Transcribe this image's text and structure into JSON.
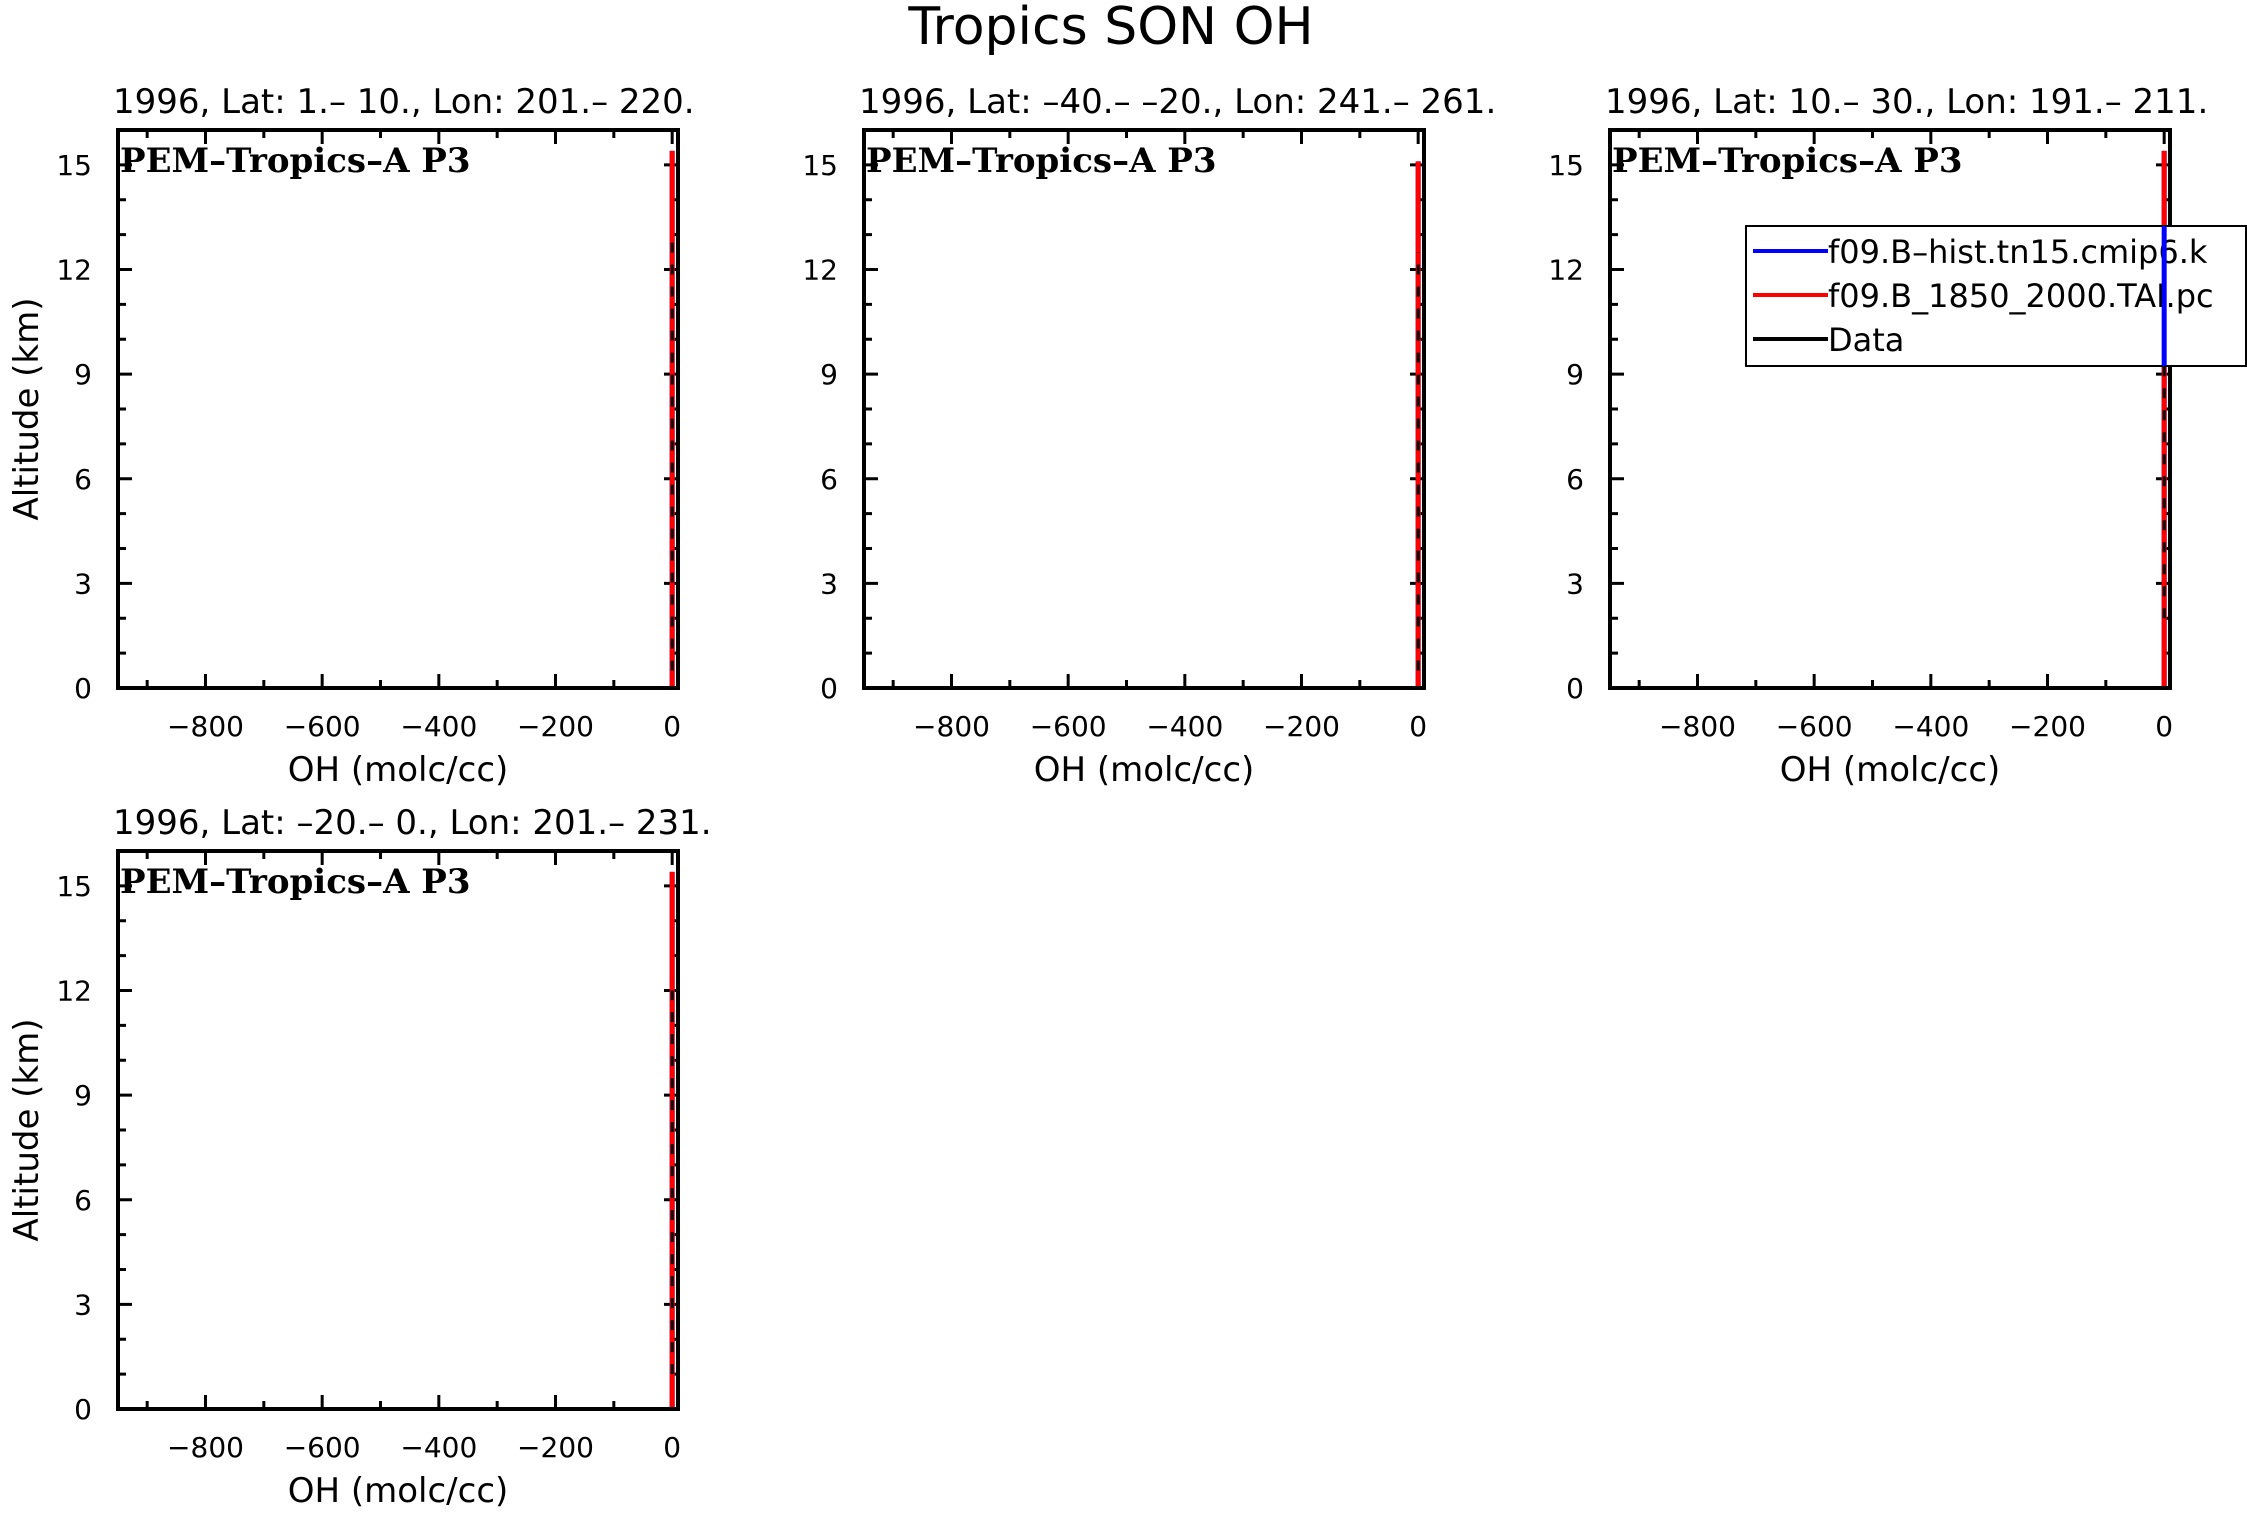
{
  "figure_title": "Tropics SON OH",
  "chart_data": [
    {
      "type": "line",
      "subtitle": "1996, Lat: 1.– 10., Lon: 201.– 220.",
      "campaign_label": "PEM–Tropics–A P3",
      "xlabel": "OH (molc/cc)",
      "ylabel": "Altitude (km)",
      "xlim": [
        -950,
        10
      ],
      "ylim": [
        0,
        16
      ],
      "xticks": [
        -800,
        -600,
        -400,
        -200,
        0
      ],
      "yticks": [
        0,
        3,
        6,
        9,
        12,
        15
      ],
      "show_legend": false,
      "series": [
        {
          "color": "#0000ff",
          "x": [
            0,
            0,
            0,
            0,
            0,
            0,
            0,
            0,
            0,
            0,
            0
          ],
          "y": [
            0,
            1.5,
            3,
            4.5,
            6,
            7.5,
            9,
            10.5,
            12,
            13.5,
            15.4
          ]
        },
        {
          "color": "#ff0000",
          "x": [
            0,
            0,
            0,
            0,
            0,
            0,
            0,
            0,
            0,
            0,
            0
          ],
          "y": [
            0,
            1.5,
            3,
            4.5,
            6,
            7.5,
            9,
            10.5,
            12,
            13.5,
            15.4
          ]
        },
        {
          "color": "#000000",
          "x": [
            0,
            0,
            0,
            0,
            0,
            0
          ],
          "y": [
            0.5,
            2.5,
            4.5,
            7,
            10,
            13
          ]
        }
      ]
    },
    {
      "type": "line",
      "subtitle": "1996, Lat: –40.– –20., Lon: 241.– 261.",
      "campaign_label": "PEM–Tropics–A P3",
      "xlabel": "OH (molc/cc)",
      "ylabel": "",
      "xlim": [
        -950,
        10
      ],
      "ylim": [
        0,
        16
      ],
      "xticks": [
        -800,
        -600,
        -400,
        -200,
        0
      ],
      "yticks": [
        0,
        3,
        6,
        9,
        12,
        15
      ],
      "show_legend": false,
      "series": [
        {
          "color": "#0000ff",
          "x": [
            0,
            0,
            0,
            0,
            0,
            0,
            0,
            0,
            0,
            0,
            0
          ],
          "y": [
            0,
            1.5,
            3,
            4.5,
            6,
            7.5,
            9,
            10.5,
            12,
            13.5,
            15.1
          ]
        },
        {
          "color": "#ff0000",
          "x": [
            0,
            0,
            0,
            0,
            0,
            0,
            0,
            0,
            0,
            0,
            0
          ],
          "y": [
            0,
            1.5,
            3,
            4.5,
            6,
            7.5,
            9,
            10.5,
            12,
            13.5,
            15.1
          ]
        },
        {
          "color": "#000000",
          "x": [
            0,
            0,
            0,
            0,
            0,
            0
          ],
          "y": [
            0.5,
            2,
            4,
            6.5,
            9.5,
            12.5
          ]
        }
      ]
    },
    {
      "type": "line",
      "subtitle": "1996, Lat: 10.– 30., Lon: 191.– 211.",
      "campaign_label": "PEM–Tropics–A P3",
      "xlabel": "OH (molc/cc)",
      "ylabel": "",
      "xlim": [
        -950,
        10
      ],
      "ylim": [
        0,
        16
      ],
      "xticks": [
        -800,
        -600,
        -400,
        -200,
        0
      ],
      "yticks": [
        0,
        3,
        6,
        9,
        12,
        15
      ],
      "show_legend": true,
      "series": [
        {
          "name": "f09.B–hist.tn15.cmip6.k",
          "color": "#0000ff",
          "x": [
            0,
            0,
            0,
            0,
            0,
            0,
            0,
            0,
            0,
            0,
            0
          ],
          "y": [
            0,
            1.5,
            3,
            4.5,
            6,
            7.5,
            9,
            10.5,
            12,
            13.5,
            15.4
          ]
        },
        {
          "name": "f09.B_1850_2000.TAI.pc",
          "color": "#ff0000",
          "x": [
            0,
            0,
            0,
            0,
            0,
            0,
            0,
            0,
            0,
            0,
            0
          ],
          "y": [
            0,
            1.5,
            3,
            4.5,
            6,
            7.5,
            9,
            10.5,
            12,
            13.5,
            15.4
          ]
        },
        {
          "name": "Data",
          "color": "#000000",
          "x": [
            0,
            0,
            0,
            0,
            0
          ],
          "y": [
            2,
            4.5,
            7,
            10,
            12.5
          ]
        }
      ]
    },
    {
      "type": "line",
      "subtitle": "1996, Lat: –20.– 0., Lon: 201.– 231.",
      "campaign_label": "PEM–Tropics–A P3",
      "xlabel": "OH (molc/cc)",
      "ylabel": "Altitude (km)",
      "xlim": [
        -950,
        10
      ],
      "ylim": [
        0,
        16
      ],
      "xticks": [
        -800,
        -600,
        -400,
        -200,
        0
      ],
      "yticks": [
        0,
        3,
        6,
        9,
        12,
        15
      ],
      "show_legend": false,
      "series": [
        {
          "color": "#0000ff",
          "x": [
            0,
            0,
            0,
            0,
            0,
            0,
            0,
            0,
            0,
            0,
            0
          ],
          "y": [
            0,
            1.5,
            3,
            4.5,
            6,
            7.5,
            9,
            10.5,
            12,
            13.5,
            15.4
          ]
        },
        {
          "color": "#ff0000",
          "x": [
            0,
            0,
            0,
            0,
            0,
            0,
            0,
            0,
            0,
            0,
            0
          ],
          "y": [
            0,
            1.5,
            3,
            4.5,
            6,
            7.5,
            9,
            10.5,
            12,
            13.5,
            15.4
          ]
        },
        {
          "color": "#000000",
          "x": [
            0,
            0,
            0,
            0,
            0
          ],
          "y": [
            1,
            3.5,
            6,
            9,
            12
          ]
        }
      ]
    }
  ]
}
